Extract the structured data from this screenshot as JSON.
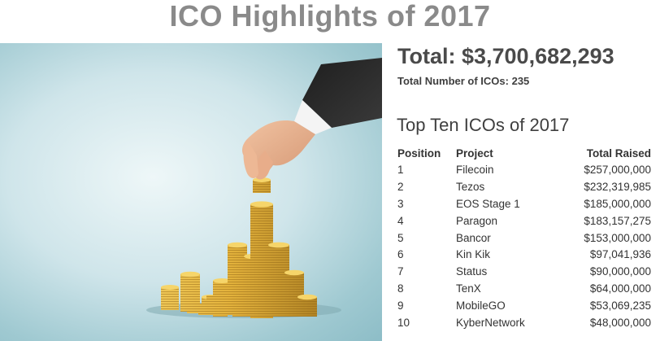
{
  "page": {
    "title": "ICO Highlights of 2017",
    "total": "Total: $3,700,682,293",
    "total_count": "Total Number of ICOs: 235"
  },
  "photo": {
    "description_icon": "hand-placing-gold-coins-icon"
  },
  "table": {
    "title": "Top Ten ICOs of 2017",
    "headers": [
      "Position",
      "Project",
      "Total Raised"
    ],
    "rows": [
      {
        "position": "1",
        "project": "Filecoin",
        "raised": "$257,000,000"
      },
      {
        "position": "2",
        "project": "Tezos",
        "raised": "$232,319,985"
      },
      {
        "position": "3",
        "project": "EOS Stage 1",
        "raised": "$185,000,000"
      },
      {
        "position": "4",
        "project": "Paragon",
        "raised": "$183,157,275"
      },
      {
        "position": "5",
        "project": "Bancor",
        "raised": "$153,000,000"
      },
      {
        "position": "6",
        "project": "Kin Kik",
        "raised": "$97,041,936"
      },
      {
        "position": "7",
        "project": "Status",
        "raised": "$90,000,000"
      },
      {
        "position": "8",
        "project": "TenX",
        "raised": "$64,000,000"
      },
      {
        "position": "9",
        "project": "MobileGO",
        "raised": "$53,069,235"
      },
      {
        "position": "10",
        "project": "KyberNetwork",
        "raised": "$48,000,000"
      }
    ]
  },
  "colors": {
    "title_gray": "#8a8a8a",
    "text_dark": "#3a3a3a",
    "gold": "#e2b43a",
    "background_teal": "#9fc9d1"
  }
}
